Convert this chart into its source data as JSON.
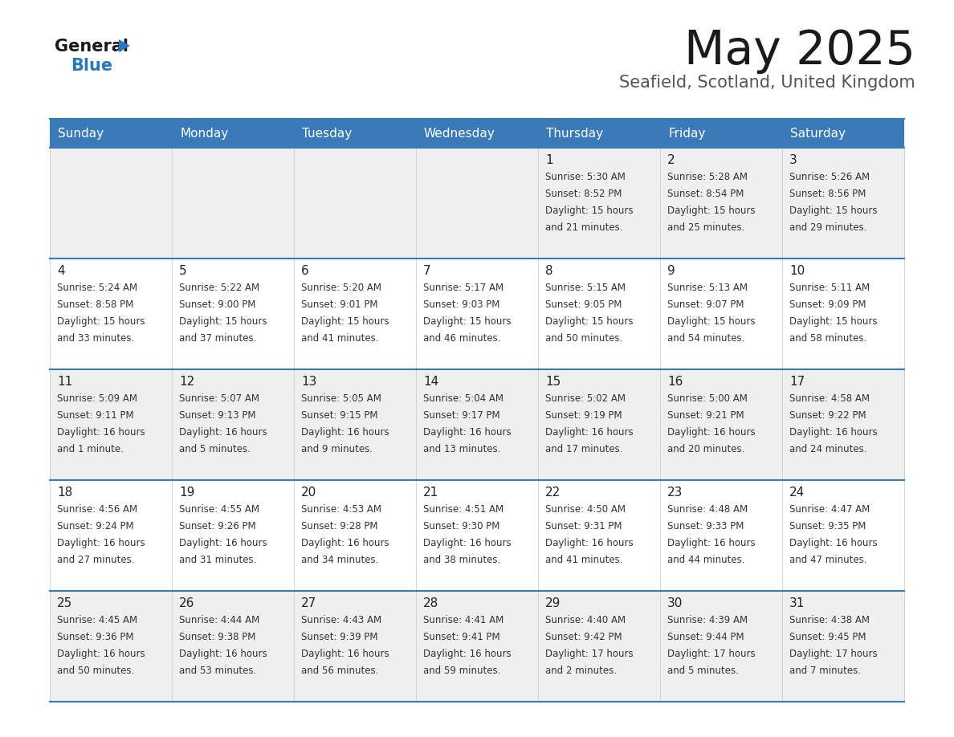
{
  "title": "May 2025",
  "subtitle": "Seafield, Scotland, United Kingdom",
  "days_of_week": [
    "Sunday",
    "Monday",
    "Tuesday",
    "Wednesday",
    "Thursday",
    "Friday",
    "Saturday"
  ],
  "header_bg": "#3a7ab8",
  "header_text": "#ffffff",
  "row_bg_odd": "#efefef",
  "row_bg_even": "#ffffff",
  "cell_text": "#333333",
  "day_num_color": "#222222",
  "grid_line_color": "#3a7ab8",
  "logo_general_color": "#1a1a1a",
  "logo_blue_color": "#2878be",
  "logo_triangle_color": "#2878be",
  "title_color": "#1a1a1a",
  "subtitle_color": "#555555",
  "title_fontsize": 42,
  "subtitle_fontsize": 15,
  "header_fontsize": 11,
  "day_num_fontsize": 11,
  "cell_text_fontsize": 8.5,
  "calendar_data": [
    [
      null,
      null,
      null,
      null,
      {
        "day": 1,
        "sunrise": "5:30 AM",
        "sunset": "8:52 PM",
        "daylight": "15 hours and 21 minutes."
      },
      {
        "day": 2,
        "sunrise": "5:28 AM",
        "sunset": "8:54 PM",
        "daylight": "15 hours and 25 minutes."
      },
      {
        "day": 3,
        "sunrise": "5:26 AM",
        "sunset": "8:56 PM",
        "daylight": "15 hours and 29 minutes."
      }
    ],
    [
      {
        "day": 4,
        "sunrise": "5:24 AM",
        "sunset": "8:58 PM",
        "daylight": "15 hours and 33 minutes."
      },
      {
        "day": 5,
        "sunrise": "5:22 AM",
        "sunset": "9:00 PM",
        "daylight": "15 hours and 37 minutes."
      },
      {
        "day": 6,
        "sunrise": "5:20 AM",
        "sunset": "9:01 PM",
        "daylight": "15 hours and 41 minutes."
      },
      {
        "day": 7,
        "sunrise": "5:17 AM",
        "sunset": "9:03 PM",
        "daylight": "15 hours and 46 minutes."
      },
      {
        "day": 8,
        "sunrise": "5:15 AM",
        "sunset": "9:05 PM",
        "daylight": "15 hours and 50 minutes."
      },
      {
        "day": 9,
        "sunrise": "5:13 AM",
        "sunset": "9:07 PM",
        "daylight": "15 hours and 54 minutes."
      },
      {
        "day": 10,
        "sunrise": "5:11 AM",
        "sunset": "9:09 PM",
        "daylight": "15 hours and 58 minutes."
      }
    ],
    [
      {
        "day": 11,
        "sunrise": "5:09 AM",
        "sunset": "9:11 PM",
        "daylight": "16 hours and 1 minute."
      },
      {
        "day": 12,
        "sunrise": "5:07 AM",
        "sunset": "9:13 PM",
        "daylight": "16 hours and 5 minutes."
      },
      {
        "day": 13,
        "sunrise": "5:05 AM",
        "sunset": "9:15 PM",
        "daylight": "16 hours and 9 minutes."
      },
      {
        "day": 14,
        "sunrise": "5:04 AM",
        "sunset": "9:17 PM",
        "daylight": "16 hours and 13 minutes."
      },
      {
        "day": 15,
        "sunrise": "5:02 AM",
        "sunset": "9:19 PM",
        "daylight": "16 hours and 17 minutes."
      },
      {
        "day": 16,
        "sunrise": "5:00 AM",
        "sunset": "9:21 PM",
        "daylight": "16 hours and 20 minutes."
      },
      {
        "day": 17,
        "sunrise": "4:58 AM",
        "sunset": "9:22 PM",
        "daylight": "16 hours and 24 minutes."
      }
    ],
    [
      {
        "day": 18,
        "sunrise": "4:56 AM",
        "sunset": "9:24 PM",
        "daylight": "16 hours and 27 minutes."
      },
      {
        "day": 19,
        "sunrise": "4:55 AM",
        "sunset": "9:26 PM",
        "daylight": "16 hours and 31 minutes."
      },
      {
        "day": 20,
        "sunrise": "4:53 AM",
        "sunset": "9:28 PM",
        "daylight": "16 hours and 34 minutes."
      },
      {
        "day": 21,
        "sunrise": "4:51 AM",
        "sunset": "9:30 PM",
        "daylight": "16 hours and 38 minutes."
      },
      {
        "day": 22,
        "sunrise": "4:50 AM",
        "sunset": "9:31 PM",
        "daylight": "16 hours and 41 minutes."
      },
      {
        "day": 23,
        "sunrise": "4:48 AM",
        "sunset": "9:33 PM",
        "daylight": "16 hours and 44 minutes."
      },
      {
        "day": 24,
        "sunrise": "4:47 AM",
        "sunset": "9:35 PM",
        "daylight": "16 hours and 47 minutes."
      }
    ],
    [
      {
        "day": 25,
        "sunrise": "4:45 AM",
        "sunset": "9:36 PM",
        "daylight": "16 hours and 50 minutes."
      },
      {
        "day": 26,
        "sunrise": "4:44 AM",
        "sunset": "9:38 PM",
        "daylight": "16 hours and 53 minutes."
      },
      {
        "day": 27,
        "sunrise": "4:43 AM",
        "sunset": "9:39 PM",
        "daylight": "16 hours and 56 minutes."
      },
      {
        "day": 28,
        "sunrise": "4:41 AM",
        "sunset": "9:41 PM",
        "daylight": "16 hours and 59 minutes."
      },
      {
        "day": 29,
        "sunrise": "4:40 AM",
        "sunset": "9:42 PM",
        "daylight": "17 hours and 2 minutes."
      },
      {
        "day": 30,
        "sunrise": "4:39 AM",
        "sunset": "9:44 PM",
        "daylight": "17 hours and 5 minutes."
      },
      {
        "day": 31,
        "sunrise": "4:38 AM",
        "sunset": "9:45 PM",
        "daylight": "17 hours and 7 minutes."
      }
    ]
  ]
}
